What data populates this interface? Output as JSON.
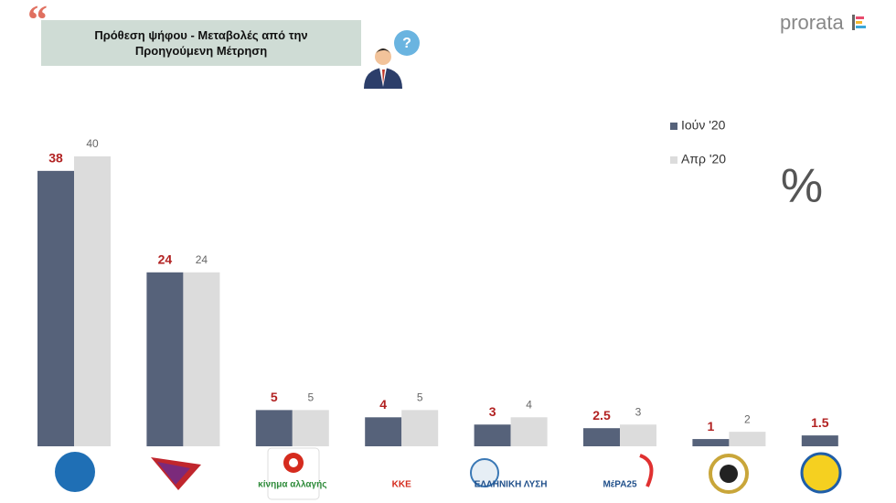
{
  "title": "Πρόθεση ψήφου - Μεταβολές από την Προηγούμενη Μέτρηση",
  "brand": "prorata",
  "unit_symbol": "%",
  "chart_data": {
    "type": "bar",
    "categories": [
      null,
      null,
      "κίνημα αλλαγής",
      "ΚΚΕ",
      "ΕΛΛΗΝΙΚΗ ΛΥΣΗ",
      "ΜέΡΑ25",
      null,
      null
    ],
    "series": [
      {
        "name": "Ιούν '20",
        "color": "#56627a",
        "label_color": "#b22222",
        "values": [
          38,
          24,
          5,
          4,
          3,
          2.5,
          1,
          1.5
        ]
      },
      {
        "name": "Απρ '20",
        "color": "#dcdcdc",
        "label_color": "#666666",
        "values": [
          40,
          24,
          5,
          5,
          4,
          3,
          2,
          null
        ]
      }
    ]
  }
}
